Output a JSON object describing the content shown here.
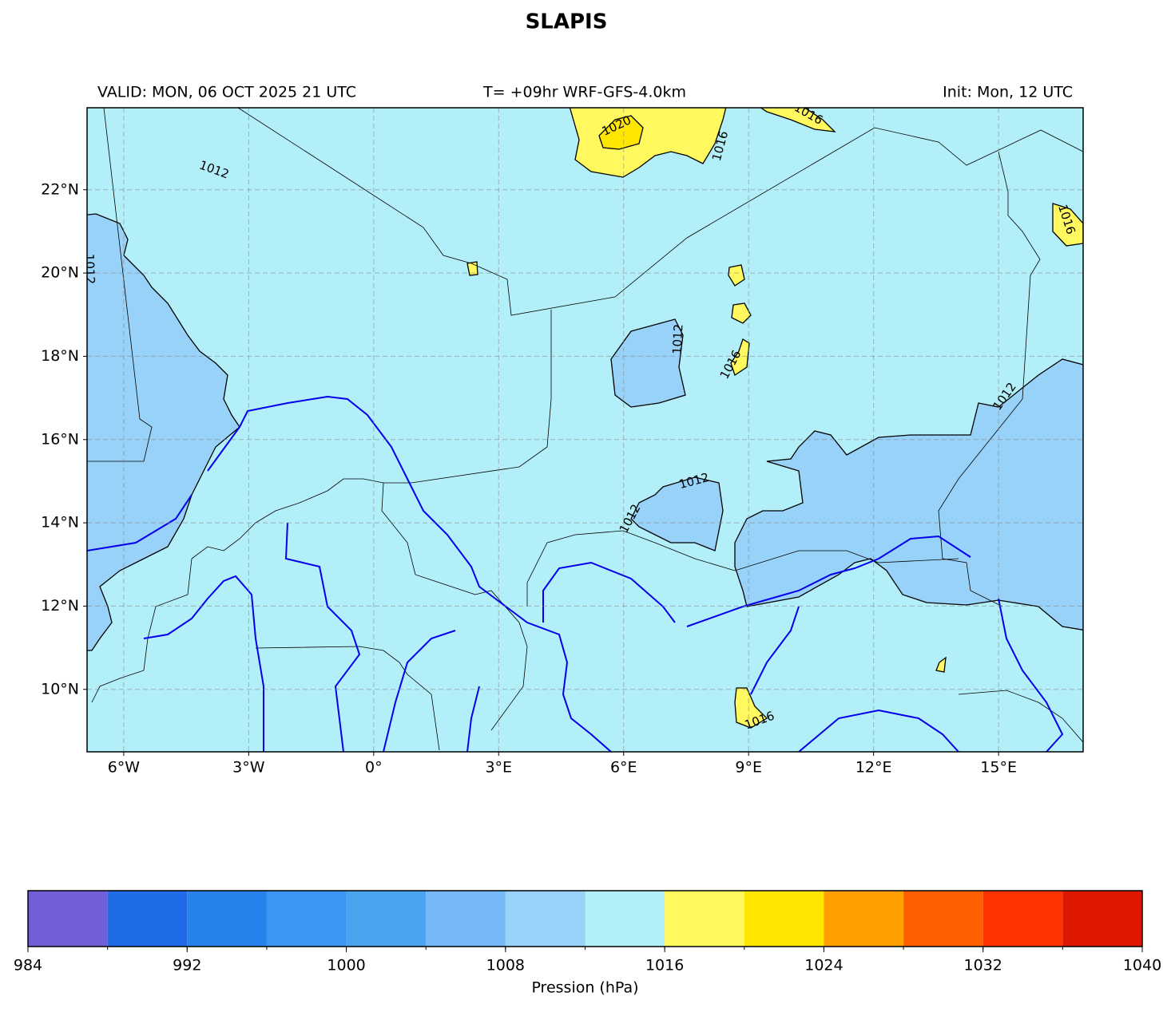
{
  "title": "SLAPIS",
  "header": {
    "valid": "VALID: MON, 06 OCT 2025 21 UTC",
    "run": "T= +09hr WRF-GFS-4.0km",
    "init": "Init: Mon, 12 UTC"
  },
  "map": {
    "xlim": [
      -6.88,
      17.03
    ],
    "ylim": [
      8.5,
      23.97
    ],
    "xticks": [
      {
        "value": -6,
        "label": "6°W"
      },
      {
        "value": -3,
        "label": "3°W"
      },
      {
        "value": 0,
        "label": "0°"
      },
      {
        "value": 3,
        "label": "3°E"
      },
      {
        "value": 6,
        "label": "6°E"
      },
      {
        "value": 9,
        "label": "9°E"
      },
      {
        "value": 12,
        "label": "12°E"
      },
      {
        "value": 15,
        "label": "15°E"
      }
    ],
    "yticks": [
      {
        "value": 10,
        "label": "10°N"
      },
      {
        "value": 12,
        "label": "12°N"
      },
      {
        "value": 14,
        "label": "14°N"
      },
      {
        "value": 16,
        "label": "16°N"
      },
      {
        "value": 18,
        "label": "18°N"
      },
      {
        "value": 20,
        "label": "20°N"
      },
      {
        "value": 22,
        "label": "22°N"
      }
    ],
    "grid": true,
    "contour_labels": [
      1012,
      1012,
      1020,
      1016,
      1016,
      1012,
      1016,
      1012,
      1012,
      1012,
      1016,
      1016
    ]
  },
  "colorbar": {
    "levels": [
      984,
      988,
      992,
      996,
      1000,
      1004,
      1008,
      1012,
      1016,
      1020,
      1024,
      1028,
      1032,
      1036,
      1040
    ],
    "colors": [
      "#705fd8",
      "#1f6be8",
      "#2783ec",
      "#3b96f2",
      "#4aa3ef",
      "#74b8f7",
      "#98d2f8",
      "#b3eff8",
      "#fff85f",
      "#ffe600",
      "#ffa000",
      "#ff5f00",
      "#ff3200",
      "#de1800"
    ],
    "ticks": [
      984,
      992,
      1000,
      1008,
      1016,
      1024,
      1032,
      1040
    ],
    "label": "Pression (hPa)"
  }
}
